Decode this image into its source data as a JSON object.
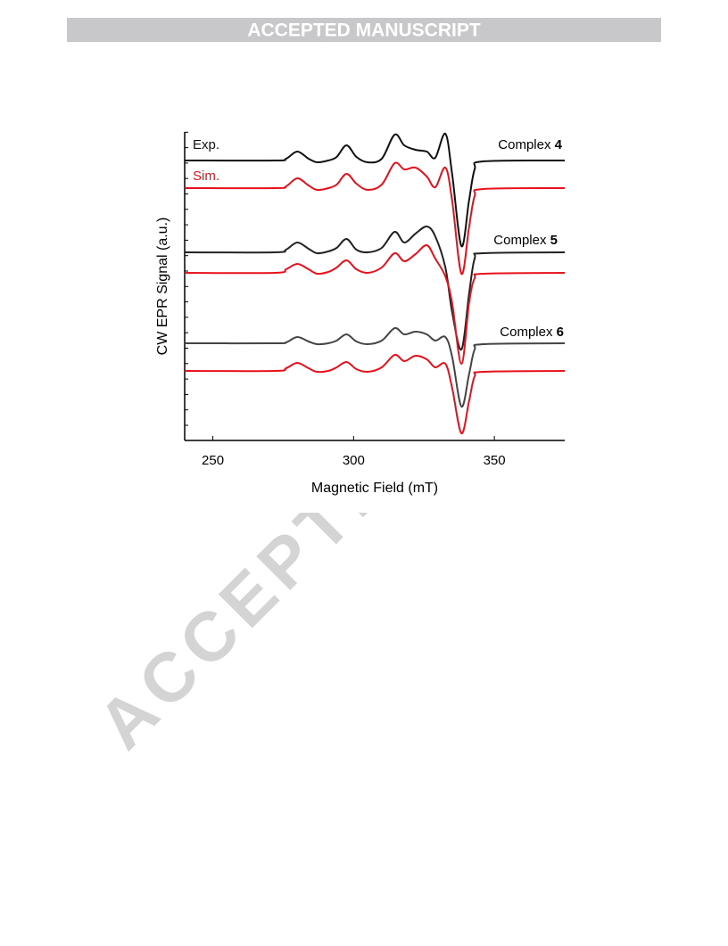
{
  "header": {
    "title": "ACCEPTED MANUSCRIPT"
  },
  "watermark": "ACCEPTED",
  "chart_data": {
    "type": "line",
    "xlabel": "Magnetic Field (mT)",
    "ylabel": "CW EPR Signal (a.u.)",
    "xlim": [
      240,
      375
    ],
    "xticks": [
      250,
      300,
      350
    ],
    "ylim": [
      0,
      346
    ],
    "legend": [
      {
        "name": "Exp.",
        "color": "#111111"
      },
      {
        "name": "Sim.",
        "color": "#e8101a"
      }
    ],
    "annotations": [
      {
        "label": "Complex",
        "number": "4"
      },
      {
        "label": "Complex",
        "number": "5"
      },
      {
        "label": "Complex",
        "number": "6"
      }
    ],
    "x": [
      240,
      272,
      276,
      280,
      284,
      287,
      291,
      294,
      297.5,
      301,
      305,
      310,
      314.6,
      318,
      322,
      326,
      329,
      332.6,
      335,
      338.3,
      341,
      343,
      346,
      375
    ],
    "series": [
      {
        "color": "#111111",
        "values": [
          314,
          314,
          316,
          324,
          316,
          312,
          314,
          318,
          331,
          318,
          312,
          316,
          343,
          331,
          326,
          324,
          317,
          344,
          299,
          218,
          269,
          304,
          313,
          314
        ]
      },
      {
        "color": "#e8101a",
        "values": [
          283,
          283,
          285,
          294,
          286,
          281,
          283,
          287,
          299,
          288,
          281,
          287,
          311,
          304,
          306,
          296,
          284,
          306,
          269,
          187,
          239,
          274,
          282,
          283
        ]
      },
      {
        "color": "#222222",
        "values": [
          211,
          211,
          214,
          222,
          215,
          210,
          212,
          216,
          226,
          214,
          211,
          216,
          234,
          222,
          232,
          240,
          229,
          194,
          144,
          102,
          164,
          204,
          210,
          211
        ]
      },
      {
        "color": "#e8101a",
        "values": [
          188,
          188,
          192,
          198,
          192,
          187,
          189,
          194,
          202,
          192,
          188,
          194,
          210,
          201,
          209,
          219,
          204,
          184,
          154,
          86,
          154,
          182,
          187,
          188
        ]
      },
      {
        "color": "#444444",
        "values": [
          109,
          109,
          110,
          116,
          111,
          108,
          109,
          112,
          119,
          111,
          108,
          112,
          126,
          119,
          122,
          119,
          112,
          116,
          94,
          38,
          74,
          102,
          108,
          109
        ]
      },
      {
        "color": "#e8101a",
        "values": [
          78,
          78,
          81,
          87,
          81,
          77,
          78,
          82,
          88,
          80,
          77,
          82,
          96,
          89,
          95,
          91,
          82,
          86,
          59,
          8,
          44,
          72,
          77,
          78
        ]
      }
    ]
  }
}
